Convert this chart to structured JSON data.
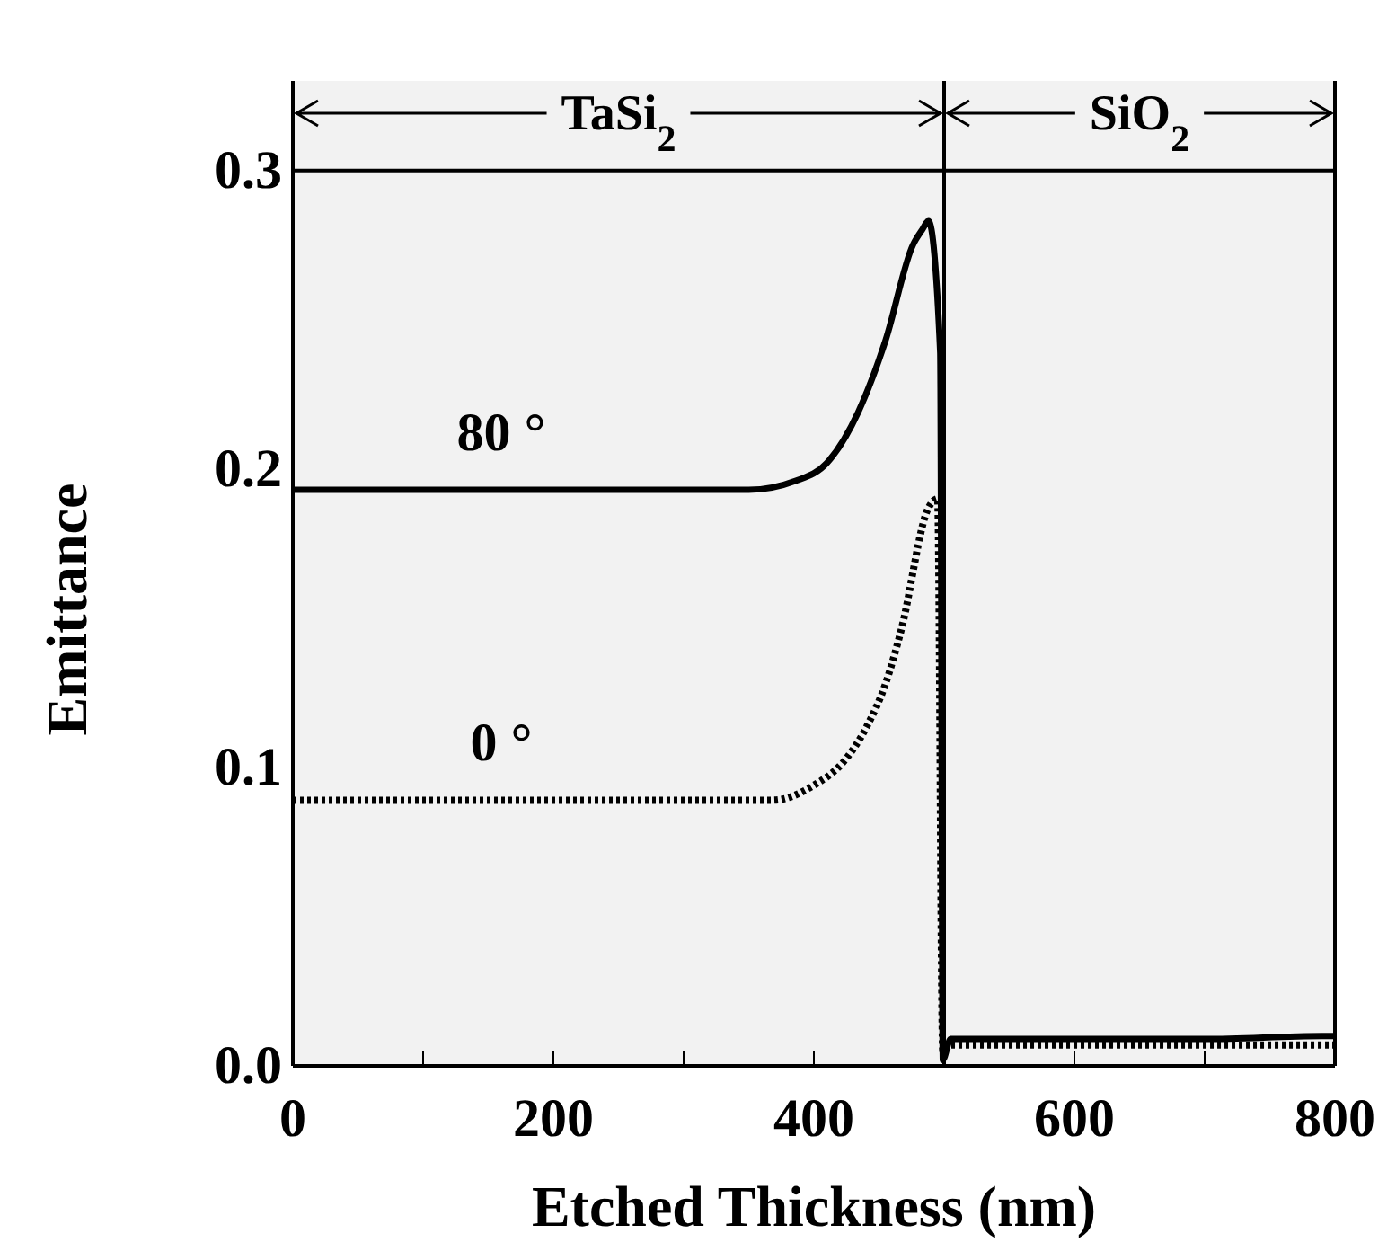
{
  "chart_data": {
    "type": "line",
    "xlabel": "Etched Thickness (nm)",
    "ylabel": "Emittance",
    "xlim": [
      0,
      800
    ],
    "ylim": [
      0,
      0.33
    ],
    "xticks": [
      0,
      {
        "value": 100,
        "label": null
      },
      200,
      {
        "value": 300,
        "label": null
      },
      400,
      {
        "value": 500,
        "label": null
      },
      600,
      {
        "value": 700,
        "label": null
      },
      800
    ],
    "yticks": [
      {
        "value": 0,
        "label": "0.0"
      },
      0.1,
      0.2,
      0.3
    ],
    "grid": false,
    "legend": false,
    "marker": "none",
    "ref_lines": [
      {
        "axis": "y",
        "value": 0.3,
        "color": "#000000",
        "line_style": "solid"
      },
      {
        "axis": "x",
        "value": 500,
        "color": "#000000",
        "line_style": "solid"
      }
    ],
    "bands": [
      {
        "axis": "x",
        "from": 0,
        "to": 500,
        "label": "TaSi$_{2}$",
        "color": "#f2f2f2"
      },
      {
        "axis": "x",
        "from": 500,
        "to": 800,
        "label": "SiO$_{2}$",
        "color": "#f2f2f2"
      }
    ],
    "series": [
      {
        "name": "80 °",
        "color": "#000000",
        "line_style": "solid",
        "x": [
          0,
          100,
          200,
          300,
          350,
          386,
          410,
          434,
          455,
          476,
          483,
          488,
          497,
          499,
          505,
          600,
          700,
          790,
          800
        ],
        "values": [
          0.193,
          0.193,
          0.193,
          0.193,
          0.193,
          0.196,
          0.202,
          0.219,
          0.243,
          0.275,
          0.28,
          0.283,
          0.239,
          0.002,
          0.009,
          0.009,
          0.009,
          0.01,
          0.01
        ]
      },
      {
        "name": "0 °",
        "color": "#000000",
        "line_style": "dotted",
        "x": [
          0,
          100,
          200,
          300,
          368,
          400,
          423,
          441,
          455,
          467,
          488,
          495,
          499,
          505,
          600,
          700,
          800
        ],
        "values": [
          0.089,
          0.089,
          0.089,
          0.089,
          0.089,
          0.094,
          0.102,
          0.114,
          0.128,
          0.146,
          0.187,
          0.19,
          0.005,
          0.007,
          0.007,
          0.007,
          0.007
        ]
      }
    ]
  }
}
